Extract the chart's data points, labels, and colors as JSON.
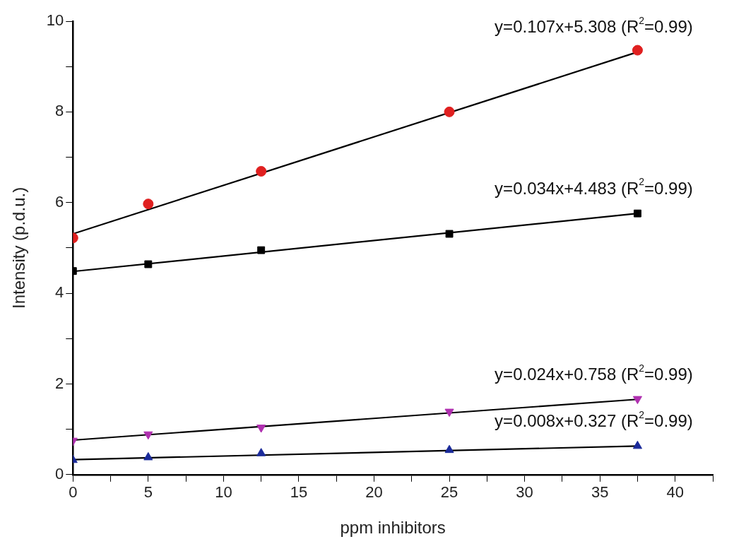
{
  "chart_data": {
    "type": "scatter",
    "xlabel": "ppm inhibitors",
    "ylabel": "Intensity (p.d.u.)",
    "x": [
      0,
      5,
      12.5,
      25,
      37.5
    ],
    "xlim": [
      0,
      42.5
    ],
    "xticks": [
      0,
      {
        "value": 2.5,
        "label": null
      },
      5,
      {
        "value": 7.5,
        "label": null
      },
      10,
      {
        "value": 12.5,
        "label": null
      },
      15,
      {
        "value": 17.5,
        "label": null
      },
      20,
      {
        "value": 22.5,
        "label": null
      },
      25,
      {
        "value": 27.5,
        "label": null
      },
      30,
      {
        "value": 32.5,
        "label": null
      },
      35,
      {
        "value": 37.5,
        "label": null
      },
      40,
      {
        "value": 42.5,
        "label": null
      }
    ],
    "ylim": [
      0,
      10
    ],
    "yticks": [
      0,
      {
        "value": 1,
        "label": null
      },
      2,
      {
        "value": 3,
        "label": null
      },
      4,
      {
        "value": 5,
        "label": null
      },
      6,
      {
        "value": 7,
        "label": null
      },
      8,
      {
        "value": 9,
        "label": null
      },
      10
    ],
    "grid": false,
    "legend": false,
    "series": [
      {
        "type": "line",
        "values": [
          5.31,
          null,
          null,
          null,
          9.32
        ],
        "color": "#000000",
        "marker": "none",
        "line_style": "solid"
      },
      {
        "type": "line",
        "values": [
          4.48,
          null,
          null,
          null,
          5.76
        ],
        "color": "#000000",
        "marker": "none",
        "line_style": "solid"
      },
      {
        "type": "line",
        "values": [
          0.76,
          null,
          null,
          null,
          1.66
        ],
        "color": "#000000",
        "marker": "none",
        "line_style": "solid"
      },
      {
        "type": "line",
        "values": [
          0.33,
          null,
          null,
          null,
          0.63
        ],
        "color": "#000000",
        "marker": "none",
        "line_style": "solid"
      },
      {
        "type": "scatter",
        "values": [
          5.22,
          5.97,
          6.69,
          8.0,
          9.36
        ],
        "color": "#e02020",
        "marker": "circle"
      },
      {
        "type": "scatter",
        "values": [
          4.49,
          4.64,
          4.95,
          5.31,
          5.76
        ],
        "color": "#000000",
        "marker": "square"
      },
      {
        "type": "scatter",
        "values": [
          0.75,
          0.89,
          1.04,
          1.39,
          1.67
        ],
        "color": "#b030b0",
        "marker": "triangle_down"
      },
      {
        "type": "scatter",
        "values": [
          0.32,
          0.38,
          0.47,
          0.54,
          0.63
        ],
        "color": "#1a2a9a",
        "marker": "triangle"
      }
    ],
    "annotations": [
      "y=0.107x+5.308 (R$^{2}$=0.99)",
      "y=0.034x+4.483 (R$^{2}$=0.99)",
      "y=0.024x+0.758 (R$^{2}$=0.99)",
      "y=0.008x+0.327 (R$^{2}$=0.99)"
    ]
  }
}
